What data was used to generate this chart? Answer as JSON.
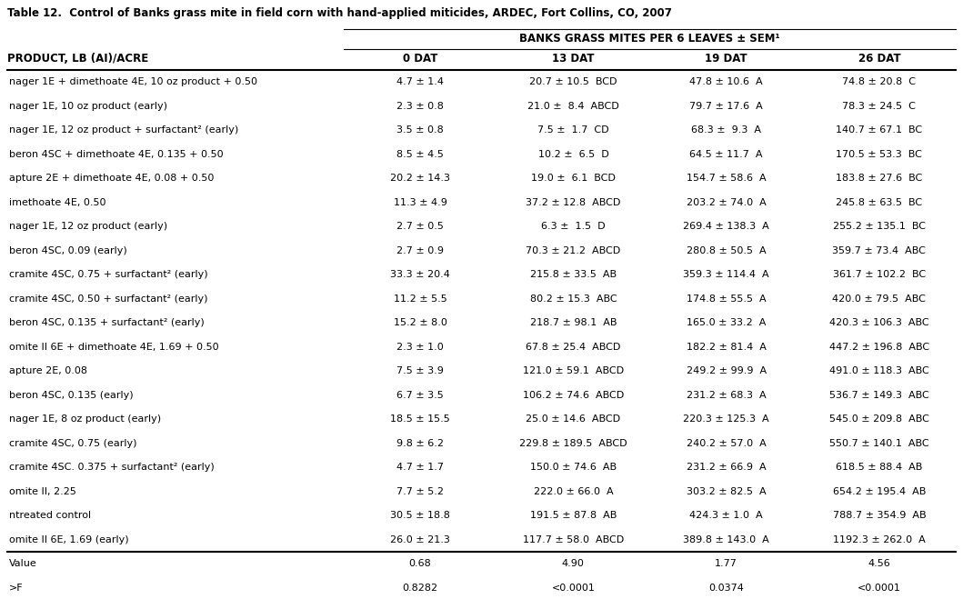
{
  "title": "Table 12.  Control of Banks grass mite in field corn with hand-applied miticides, ARDEC, Fort Collins, CO, 2007",
  "header_top": "BANKS GRASS MITES PER 6 LEAVES ± SEM¹",
  "col_header1": "PRODUCT, LB (AI)/ACRE",
  "col_headers": [
    "0 DAT",
    "13 DAT",
    "19 DAT",
    "26 DAT"
  ],
  "rows": [
    [
      "nager 1E + dimethoate 4E, 10 oz product + 0.50",
      "4.7 ± 1.4",
      "20.7 ± 10.5  BCD",
      "47.8 ± 10.6  A",
      "74.8 ± 20.8  C"
    ],
    [
      "nager 1E, 10 oz product (early)",
      "2.3 ± 0.8",
      "21.0 ±  8.4  ABCD",
      "79.7 ± 17.6  A",
      "78.3 ± 24.5  C"
    ],
    [
      "nager 1E, 12 oz product + surfactant² (early)",
      "3.5 ± 0.8",
      "7.5 ±  1.7  CD",
      "68.3 ±  9.3  A",
      "140.7 ± 67.1  BC"
    ],
    [
      "beron 4SC + dimethoate 4E, 0.135 + 0.50",
      "8.5 ± 4.5",
      "10.2 ±  6.5  D",
      "64.5 ± 11.7  A",
      "170.5 ± 53.3  BC"
    ],
    [
      "apture 2E + dimethoate 4E, 0.08 + 0.50",
      "20.2 ± 14.3",
      "19.0 ±  6.1  BCD",
      "154.7 ± 58.6  A",
      "183.8 ± 27.6  BC"
    ],
    [
      "imethoate 4E, 0.50",
      "11.3 ± 4.9",
      "37.2 ± 12.8  ABCD",
      "203.2 ± 74.0  A",
      "245.8 ± 63.5  BC"
    ],
    [
      "nager 1E, 12 oz product (early)",
      "2.7 ± 0.5",
      "6.3 ±  1.5  D",
      "269.4 ± 138.3  A",
      "255.2 ± 135.1  BC"
    ],
    [
      "beron 4SC, 0.09 (early)",
      "2.7 ± 0.9",
      "70.3 ± 21.2  ABCD",
      "280.8 ± 50.5  A",
      "359.7 ± 73.4  ABC"
    ],
    [
      "cramite 4SC, 0.75 + surfactant² (early)",
      "33.3 ± 20.4",
      "215.8 ± 33.5  AB",
      "359.3 ± 114.4  A",
      "361.7 ± 102.2  BC"
    ],
    [
      "cramite 4SC, 0.50 + surfactant² (early)",
      "11.2 ± 5.5",
      "80.2 ± 15.3  ABC",
      "174.8 ± 55.5  A",
      "420.0 ± 79.5  ABC"
    ],
    [
      "beron 4SC, 0.135 + surfactant² (early)",
      "15.2 ± 8.0",
      "218.7 ± 98.1  AB",
      "165.0 ± 33.2  A",
      "420.3 ± 106.3  ABC"
    ],
    [
      "omite II 6E + dimethoate 4E, 1.69 + 0.50",
      "2.3 ± 1.0",
      "67.8 ± 25.4  ABCD",
      "182.2 ± 81.4  A",
      "447.2 ± 196.8  ABC"
    ],
    [
      "apture 2E, 0.08",
      "7.5 ± 3.9",
      "121.0 ± 59.1  ABCD",
      "249.2 ± 99.9  A",
      "491.0 ± 118.3  ABC"
    ],
    [
      "beron 4SC, 0.135 (early)",
      "6.7 ± 3.5",
      "106.2 ± 74.6  ABCD",
      "231.2 ± 68.3  A",
      "536.7 ± 149.3  ABC"
    ],
    [
      "nager 1E, 8 oz product (early)",
      "18.5 ± 15.5",
      "25.0 ± 14.6  ABCD",
      "220.3 ± 125.3  A",
      "545.0 ± 209.8  ABC"
    ],
    [
      "cramite 4SC, 0.75 (early)",
      "9.8 ± 6.2",
      "229.8 ± 189.5  ABCD",
      "240.2 ± 57.0  A",
      "550.7 ± 140.1  ABC"
    ],
    [
      "cramite 4SC. 0.375 + surfactant² (early)",
      "4.7 ± 1.7",
      "150.0 ± 74.6  AB",
      "231.2 ± 66.9  A",
      "618.5 ± 88.4  AB"
    ],
    [
      "omite II, 2.25",
      "7.7 ± 5.2",
      "222.0 ± 66.0  A",
      "303.2 ± 82.5  A",
      "654.2 ± 195.4  AB"
    ],
    [
      "ntreated control",
      "30.5 ± 18.8",
      "191.5 ± 87.8  AB",
      "424.3 ± 1.0  A",
      "788.7 ± 354.9  AB"
    ],
    [
      "omite II 6E, 1.69 (early)",
      "26.0 ± 21.3",
      "117.7 ± 58.0  ABCD",
      "389.8 ± 143.0  A",
      "1192.3 ± 262.0  A"
    ]
  ],
  "footer_rows": [
    [
      "Value",
      "0.68",
      "4.90",
      "1.77",
      "4.56"
    ],
    [
      ">F",
      "0.8282",
      "<0.0001",
      "0.0374",
      "<0.0001"
    ]
  ],
  "bg_color": "#ffffff",
  "font_size": 8.0,
  "header_font_size": 8.5,
  "title_font_size": 8.5
}
